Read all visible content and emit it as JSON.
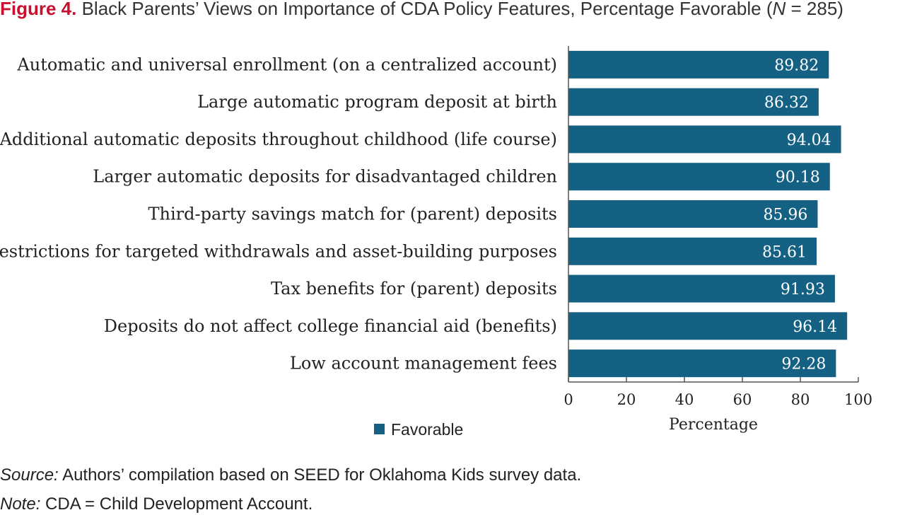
{
  "figure": {
    "label": "Figure 4.",
    "title_main": "Black Parents’ Views on Importance of CDA Policy Features, Percentage Favorable (",
    "title_n": "N",
    "title_tail": " = 285)"
  },
  "chart_data": {
    "type": "bar",
    "orientation": "horizontal",
    "categories": [
      "Automatic and universal enrollment (on a centralized account)",
      "Large automatic program deposit at birth",
      "Additional automatic deposits throughout childhood (life course)",
      "Larger automatic deposits for disadvantaged children",
      "Third-party savings match for (parent) deposits",
      "Restrictions for targeted withdrawals and asset-building purposes",
      "Tax benefits for (parent) deposits",
      "Deposits do not affect college financial aid (benefits)",
      "Low account management fees"
    ],
    "series": [
      {
        "name": "Favorable",
        "values": [
          89.82,
          86.32,
          94.04,
          90.18,
          85.96,
          85.61,
          91.93,
          96.14,
          92.28
        ],
        "color": "#156184"
      }
    ],
    "xlim": [
      0,
      100
    ],
    "xticks": [
      0,
      20,
      40,
      60,
      80,
      100
    ],
    "xlabel": "Percentage",
    "ylabel": "",
    "legend": "bottom",
    "grid": false
  },
  "source": {
    "label": "Source:",
    "text": " Authors’ compilation based on SEED for Oklahoma Kids survey data."
  },
  "note": {
    "label": "Note:",
    "text": " CDA = Child Development Account."
  }
}
